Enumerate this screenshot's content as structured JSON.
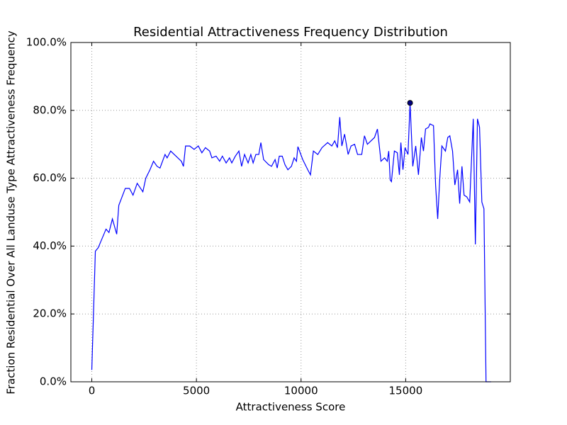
{
  "chart_data": {
    "type": "line",
    "title": "Residential Attractiveness Frequency Distribution",
    "x_label": "Attractiveness Score",
    "y_label": "Fraction Residential Over All Landuse Type Attractiveness Frequency",
    "xlim": [
      -1000,
      20000
    ],
    "ylim": [
      0,
      100
    ],
    "xticks": [
      0,
      5000,
      10000,
      15000
    ],
    "yticks": [
      {
        "value": 0,
        "label": "0.0%"
      },
      {
        "value": 20,
        "label": "20.0%"
      },
      {
        "value": 40,
        "label": "40.0%"
      },
      {
        "value": 60,
        "label": "60.0%"
      },
      {
        "value": 80,
        "label": "80.0%"
      },
      {
        "value": 100,
        "label": "100.0%"
      }
    ],
    "grid": true,
    "x": [
      0,
      170,
      305,
      680,
      820,
      985,
      1190,
      1290,
      1600,
      1800,
      1970,
      2170,
      2440,
      2580,
      2780,
      2950,
      3120,
      3260,
      3500,
      3600,
      3770,
      3940,
      4280,
      4380,
      4480,
      4680,
      4890,
      5090,
      5260,
      5430,
      5630,
      5740,
      5940,
      6110,
      6240,
      6420,
      6580,
      6690,
      6860,
      7030,
      7160,
      7300,
      7470,
      7600,
      7710,
      7840,
      7980,
      8080,
      8210,
      8450,
      8590,
      8760,
      8860,
      8960,
      9100,
      9230,
      9370,
      9540,
      9670,
      9780,
      9850,
      10080,
      10320,
      10450,
      10590,
      10800,
      11000,
      11270,
      11470,
      11610,
      11740,
      11850,
      11950,
      12080,
      12250,
      12390,
      12560,
      12700,
      12900,
      13030,
      13170,
      13340,
      13510,
      13650,
      13820,
      13990,
      14120,
      14190,
      14260,
      14320,
      14460,
      14600,
      14700,
      14770,
      14870,
      14970,
      15110,
      15210,
      15340,
      15480,
      15610,
      15750,
      15850,
      15950,
      16090,
      16160,
      16330,
      16430,
      16530,
      16630,
      16730,
      16900,
      17010,
      17110,
      17240,
      17350,
      17480,
      17580,
      17690,
      17790,
      17920,
      18060,
      18230,
      18330,
      18430,
      18530,
      18640,
      18740,
      18840,
      19080
    ],
    "series": [
      {
        "color": "#0000ff",
        "values": [
          3.5,
          38.5,
          39.5,
          45,
          44,
          48,
          43.5,
          52,
          57,
          57,
          55,
          58.5,
          56,
          60,
          62.5,
          65,
          63.5,
          63,
          67,
          66,
          68,
          67,
          65,
          63.5,
          69.5,
          69.5,
          68.5,
          69.5,
          67.5,
          69,
          68,
          66,
          66.5,
          65,
          66.5,
          64.5,
          66,
          64.5,
          66.5,
          68,
          63.5,
          67,
          64.5,
          67,
          64.5,
          67,
          67,
          70.5,
          65.5,
          64,
          63.5,
          65.5,
          63,
          66.5,
          66.5,
          64,
          62.5,
          63.5,
          66,
          65,
          69.3,
          65.5,
          62.5,
          61,
          68,
          67,
          69,
          70.5,
          69.5,
          71,
          69,
          78,
          69.5,
          73,
          67,
          69.5,
          70,
          67,
          67,
          72.5,
          70,
          71,
          72,
          74.5,
          65,
          66,
          65,
          68,
          59.5,
          59,
          68,
          67.5,
          61,
          70.5,
          62.5,
          69,
          67,
          82.2,
          63.5,
          69.5,
          61,
          72,
          68,
          74.5,
          75,
          76,
          75.5,
          58,
          48,
          60,
          69.5,
          68,
          72,
          72.5,
          68,
          58,
          62.5,
          52.5,
          63.5,
          55,
          54.5,
          53,
          77.5,
          40.5,
          77.5,
          75,
          53,
          51,
          0,
          0
        ]
      }
    ],
    "highlight": {
      "x": 15210,
      "y": 82.2,
      "color": "#000080"
    }
  }
}
